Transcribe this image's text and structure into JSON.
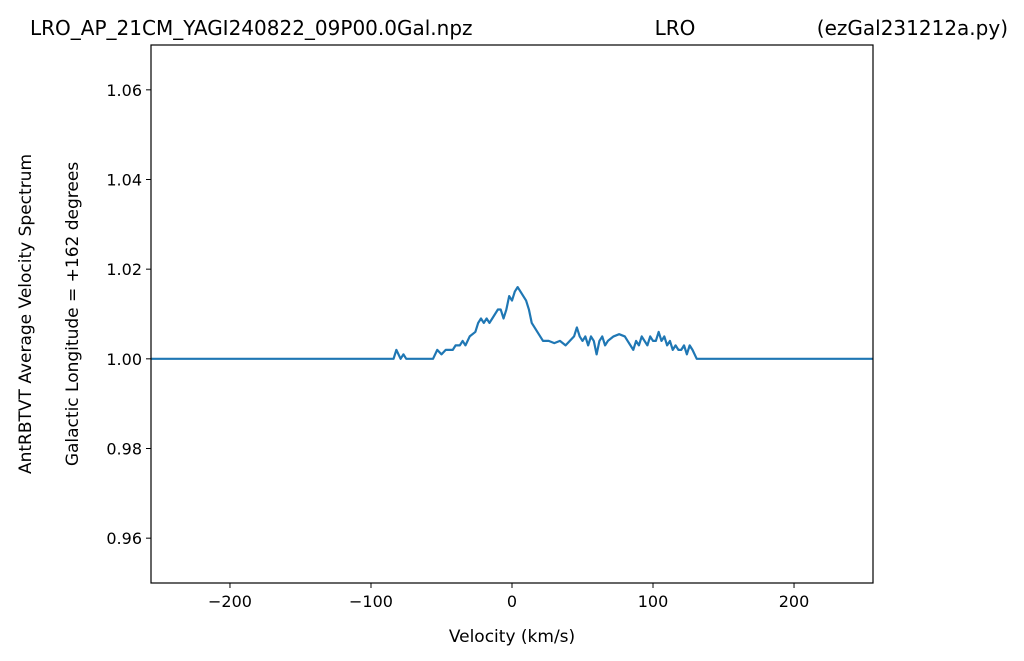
{
  "chart_data": {
    "type": "line",
    "title": "LRO_AP_21CM_YAGI240822_09P00.0Gal.npz",
    "title_center": "LRO",
    "title_right": "(ezGal231212a.py)",
    "ylabel": "AntRBTVT Average Velocity Spectrum",
    "ylabel2": "Galactic Longitude = +162 degrees",
    "xlabel": "Velocity (km/s)",
    "xlim": [
      -256,
      256
    ],
    "ylim": [
      0.95,
      1.07
    ],
    "xticks": [
      {
        "value": -200,
        "label": "−200"
      },
      {
        "value": -100,
        "label": "−100"
      },
      0,
      100,
      200
    ],
    "yticks": [
      0.96,
      0.98,
      {
        "value": 1.0,
        "label": "1.00"
      },
      1.02,
      1.04,
      1.06
    ],
    "series": [
      {
        "color": "#1f77b4",
        "x": [
          -256,
          -84,
          -82,
          -79,
          -77,
          -75,
          -56,
          -53,
          -50,
          -47,
          -42,
          -40,
          -37,
          -35,
          -33,
          -30,
          -26,
          -24,
          -22,
          -20,
          -18,
          -16,
          -14,
          -12,
          -10,
          -8,
          -6,
          -4,
          -2,
          0,
          2,
          4,
          6,
          8,
          10,
          12,
          14,
          16,
          18,
          22,
          26,
          30,
          34,
          38,
          41,
          44,
          46,
          48,
          50,
          52,
          54,
          56,
          58,
          60,
          62,
          64,
          66,
          68,
          72,
          76,
          80,
          82,
          84,
          86,
          88,
          90,
          92,
          94,
          96,
          98,
          100,
          102,
          104,
          106,
          108,
          110,
          112,
          114,
          116,
          118,
          120,
          122,
          124,
          126,
          128,
          131,
          256
        ],
        "values": [
          1.0,
          1.0,
          1.002,
          1.0,
          1.001,
          1.0,
          1.0,
          1.002,
          1.001,
          1.002,
          1.002,
          1.003,
          1.003,
          1.004,
          1.003,
          1.005,
          1.006,
          1.008,
          1.009,
          1.008,
          1.009,
          1.008,
          1.009,
          1.01,
          1.011,
          1.011,
          1.009,
          1.011,
          1.014,
          1.013,
          1.015,
          1.016,
          1.015,
          1.014,
          1.013,
          1.011,
          1.008,
          1.007,
          1.006,
          1.004,
          1.004,
          1.0035,
          1.004,
          1.003,
          1.004,
          1.005,
          1.007,
          1.005,
          1.004,
          1.005,
          1.003,
          1.005,
          1.004,
          1.001,
          1.004,
          1.005,
          1.003,
          1.004,
          1.005,
          1.0055,
          1.005,
          1.004,
          1.003,
          1.002,
          1.004,
          1.003,
          1.005,
          1.004,
          1.003,
          1.005,
          1.004,
          1.004,
          1.006,
          1.004,
          1.005,
          1.003,
          1.004,
          1.002,
          1.003,
          1.002,
          1.002,
          1.003,
          1.001,
          1.003,
          1.002,
          1.0,
          1.0
        ]
      }
    ]
  }
}
